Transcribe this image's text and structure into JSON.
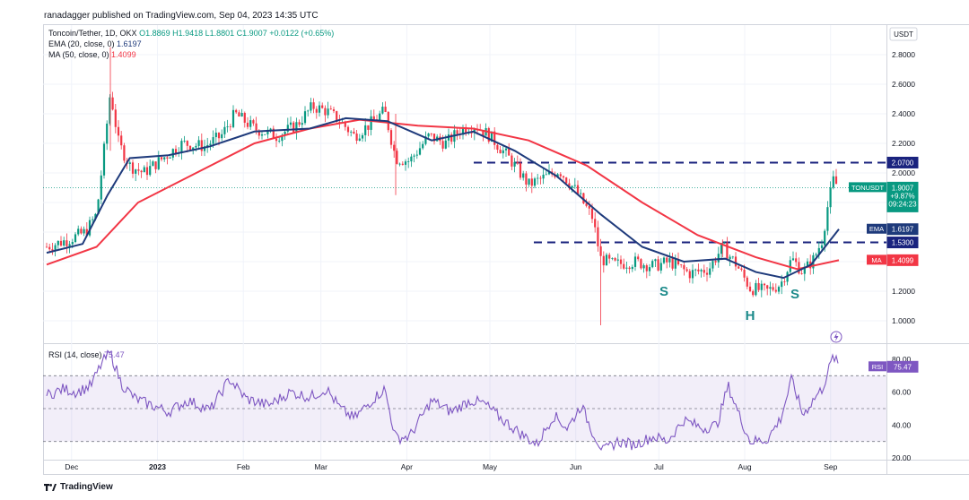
{
  "header": {
    "published": "ranadagger published on TradingView.com, Sep 04, 2023 14:35 UTC"
  },
  "legend": {
    "symbol": "Toncoin/Tether, 1D, OKX",
    "ohlc": "O1.8869 H1.9418 L1.8801 C1.9007 +0.0122 (+0.65%)",
    "ema_label": "EMA (20, close, 0)",
    "ema_value": "1.6197",
    "ma_label": "MA (50, close, 0)",
    "ma_value": "1.4099",
    "rsi_label": "RSI (14, close)",
    "rsi_value": "75.47"
  },
  "currency": "USDT",
  "price_tag": {
    "label": "TONUSDT",
    "value": "1.9007",
    "change": "+9.87%",
    "countdown": "09:24:23"
  },
  "ema_tag": {
    "label": "EMA",
    "value": "1.6197"
  },
  "ma_tag": {
    "label": "MA",
    "value": "1.4099"
  },
  "rsi_tag": {
    "label": "RSI",
    "value": "75.47"
  },
  "level_tags": [
    "2.0700",
    "1.5300"
  ],
  "annotations": [
    "S",
    "H",
    "S"
  ],
  "footer": {
    "brand": "TradingView"
  },
  "colors": {
    "up": "#089981",
    "down": "#f23645",
    "ema": "#1e3a7b",
    "ma": "#f23645",
    "rsi": "#7e57c2",
    "level": "#1a237e"
  },
  "chart_data": [
    {
      "type": "candlestick",
      "title": "Toncoin/Tether, 1D, OKX",
      "x_ticks": [
        "Dec",
        "2023",
        "Feb",
        "Mar",
        "Apr",
        "May",
        "Jun",
        "Jul",
        "Aug",
        "Sep"
      ],
      "y_ticks": [
        "2.8000",
        "2.6000",
        "2.4000",
        "2.2000",
        "2.0000",
        "1.8000",
        "1.6000",
        "1.4000",
        "1.2000",
        "1.0000"
      ],
      "ylim": [
        0.95,
        2.95
      ],
      "x_start": "2022-11-22",
      "x_end": "2023-09-04",
      "horizontal_levels": [
        2.07,
        1.53
      ],
      "last_close": 1.9007,
      "price_path": [
        [
          "2022-11-22",
          1.5
        ],
        [
          "2022-11-30",
          1.55
        ],
        [
          "2022-12-06",
          1.6
        ],
        [
          "2022-12-10",
          1.72
        ],
        [
          "2022-12-13",
          2.2
        ],
        [
          "2022-12-15",
          2.55
        ],
        [
          "2022-12-18",
          2.2
        ],
        [
          "2022-12-22",
          2.05
        ],
        [
          "2022-12-27",
          2.0
        ],
        [
          "2023-01-03",
          2.1
        ],
        [
          "2023-01-10",
          2.2
        ],
        [
          "2023-01-18",
          2.18
        ],
        [
          "2023-01-24",
          2.25
        ],
        [
          "2023-01-29",
          2.4
        ],
        [
          "2023-02-05",
          2.3
        ],
        [
          "2023-02-13",
          2.25
        ],
        [
          "2023-02-20",
          2.32
        ],
        [
          "2023-02-26",
          2.45
        ],
        [
          "2023-03-03",
          2.42
        ],
        [
          "2023-03-08",
          2.35
        ],
        [
          "2023-03-13",
          2.25
        ],
        [
          "2023-03-18",
          2.32
        ],
        [
          "2023-03-24",
          2.42
        ],
        [
          "2023-03-28",
          2.1
        ],
        [
          "2023-04-02",
          2.08
        ],
        [
          "2023-04-09",
          2.25
        ],
        [
          "2023-04-15",
          2.2
        ],
        [
          "2023-04-21",
          2.3
        ],
        [
          "2023-04-26",
          2.32
        ],
        [
          "2023-05-01",
          2.25
        ],
        [
          "2023-05-08",
          2.1
        ],
        [
          "2023-05-15",
          1.92
        ],
        [
          "2023-05-22",
          1.98
        ],
        [
          "2023-05-26",
          2.02
        ],
        [
          "2023-06-01",
          1.88
        ],
        [
          "2023-06-07",
          1.7
        ],
        [
          "2023-06-10",
          1.42
        ],
        [
          "2023-06-15",
          1.38
        ],
        [
          "2023-06-22",
          1.4
        ],
        [
          "2023-06-29",
          1.37
        ],
        [
          "2023-07-05",
          1.4
        ],
        [
          "2023-07-12",
          1.32
        ],
        [
          "2023-07-19",
          1.35
        ],
        [
          "2023-07-24",
          1.5
        ],
        [
          "2023-07-29",
          1.38
        ],
        [
          "2023-08-03",
          1.22
        ],
        [
          "2023-08-09",
          1.2
        ],
        [
          "2023-08-14",
          1.25
        ],
        [
          "2023-08-18",
          1.42
        ],
        [
          "2023-08-22",
          1.33
        ],
        [
          "2023-08-26",
          1.42
        ],
        [
          "2023-08-29",
          1.55
        ],
        [
          "2023-08-31",
          1.78
        ],
        [
          "2023-09-02",
          1.95
        ],
        [
          "2023-09-04",
          1.9007
        ]
      ],
      "series": [
        {
          "name": "EMA (20, close, 0)",
          "values": [
            [
              "2022-11-22",
              1.46
            ],
            [
              "2022-12-05",
              1.52
            ],
            [
              "2022-12-14",
              1.85
            ],
            [
              "2022-12-22",
              2.1
            ],
            [
              "2023-01-05",
              2.12
            ],
            [
              "2023-01-20",
              2.18
            ],
            [
              "2023-02-05",
              2.28
            ],
            [
              "2023-02-25",
              2.3
            ],
            [
              "2023-03-10",
              2.37
            ],
            [
              "2023-03-25",
              2.35
            ],
            [
              "2023-04-10",
              2.22
            ],
            [
              "2023-04-25",
              2.28
            ],
            [
              "2023-05-10",
              2.15
            ],
            [
              "2023-05-25",
              1.98
            ],
            [
              "2023-06-10",
              1.72
            ],
            [
              "2023-06-25",
              1.5
            ],
            [
              "2023-07-10",
              1.4
            ],
            [
              "2023-07-25",
              1.42
            ],
            [
              "2023-08-05",
              1.33
            ],
            [
              "2023-08-15",
              1.29
            ],
            [
              "2023-08-25",
              1.38
            ],
            [
              "2023-09-04",
              1.6197
            ]
          ]
        },
        {
          "name": "MA (50, close, 0)",
          "values": [
            [
              "2022-11-22",
              1.38
            ],
            [
              "2022-12-10",
              1.5
            ],
            [
              "2022-12-25",
              1.8
            ],
            [
              "2023-01-15",
              2.0
            ],
            [
              "2023-02-05",
              2.2
            ],
            [
              "2023-02-25",
              2.3
            ],
            [
              "2023-03-15",
              2.36
            ],
            [
              "2023-04-05",
              2.32
            ],
            [
              "2023-04-25",
              2.3
            ],
            [
              "2023-05-15",
              2.22
            ],
            [
              "2023-06-05",
              2.05
            ],
            [
              "2023-06-25",
              1.8
            ],
            [
              "2023-07-15",
              1.58
            ],
            [
              "2023-08-05",
              1.43
            ],
            [
              "2023-08-20",
              1.35
            ],
            [
              "2023-09-04",
              1.4099
            ]
          ]
        }
      ]
    },
    {
      "type": "line",
      "title": "RSI (14, close)",
      "y_ticks": [
        "80.00",
        "60.00",
        "40.00",
        "20.00"
      ],
      "ylim": [
        15,
        85
      ],
      "band": [
        30,
        70
      ],
      "series": [
        {
          "name": "RSI (14, close)",
          "values": [
            [
              "2022-11-22",
              58
            ],
            [
              "2022-11-28",
              62
            ],
            [
              "2022-12-03",
              60
            ],
            [
              "2022-12-08",
              64
            ],
            [
              "2022-12-12",
              78
            ],
            [
              "2022-12-15",
              84
            ],
            [
              "2022-12-19",
              65
            ],
            [
              "2022-12-24",
              56
            ],
            [
              "2022-12-30",
              52
            ],
            [
              "2023-01-05",
              48
            ],
            [
              "2023-01-12",
              55
            ],
            [
              "2023-01-20",
              49
            ],
            [
              "2023-01-27",
              68
            ],
            [
              "2023-02-02",
              56
            ],
            [
              "2023-02-10",
              52
            ],
            [
              "2023-02-18",
              60
            ],
            [
              "2023-02-25",
              57
            ],
            [
              "2023-03-03",
              62
            ],
            [
              "2023-03-08",
              50
            ],
            [
              "2023-03-13",
              44
            ],
            [
              "2023-03-20",
              56
            ],
            [
              "2023-03-24",
              62
            ],
            [
              "2023-03-28",
              32
            ],
            [
              "2023-04-02",
              33
            ],
            [
              "2023-04-10",
              55
            ],
            [
              "2023-04-17",
              48
            ],
            [
              "2023-04-24",
              55
            ],
            [
              "2023-04-29",
              53
            ],
            [
              "2023-05-05",
              44
            ],
            [
              "2023-05-12",
              35
            ],
            [
              "2023-05-18",
              28
            ],
            [
              "2023-05-24",
              46
            ],
            [
              "2023-05-29",
              38
            ],
            [
              "2023-06-03",
              52
            ],
            [
              "2023-06-07",
              36
            ],
            [
              "2023-06-11",
              24
            ],
            [
              "2023-06-16",
              30
            ],
            [
              "2023-06-22",
              28
            ],
            [
              "2023-06-29",
              33
            ],
            [
              "2023-07-04",
              30
            ],
            [
              "2023-07-10",
              43
            ],
            [
              "2023-07-17",
              38
            ],
            [
              "2023-07-22",
              40
            ],
            [
              "2023-07-26",
              64
            ],
            [
              "2023-07-30",
              46
            ],
            [
              "2023-08-03",
              30
            ],
            [
              "2023-08-09",
              31
            ],
            [
              "2023-08-14",
              44
            ],
            [
              "2023-08-18",
              68
            ],
            [
              "2023-08-22",
              46
            ],
            [
              "2023-08-26",
              56
            ],
            [
              "2023-08-29",
              62
            ],
            [
              "2023-08-31",
              72
            ],
            [
              "2023-09-02",
              82
            ],
            [
              "2023-09-04",
              75.47
            ]
          ]
        }
      ]
    }
  ]
}
